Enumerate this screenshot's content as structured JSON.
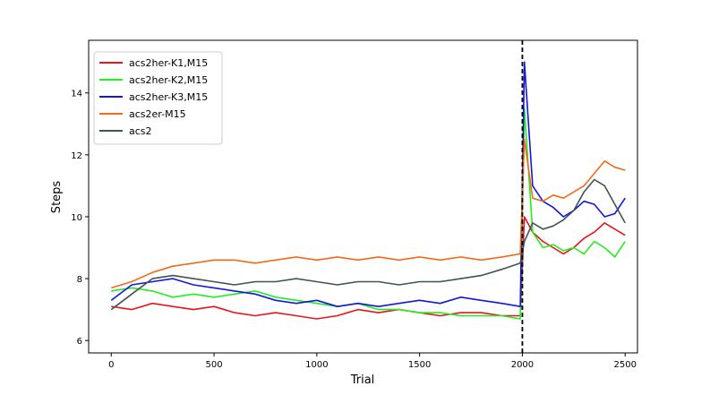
{
  "chart_data": {
    "type": "line",
    "xlabel": "Trial",
    "ylabel": "Steps",
    "xlim": [
      -110,
      2560
    ],
    "ylim": [
      5.6,
      15.7
    ],
    "xticks": [
      0,
      500,
      1000,
      1500,
      2000,
      2500
    ],
    "yticks": [
      6,
      8,
      10,
      12,
      14
    ],
    "xtick_labels": [
      "0",
      "500",
      "1000",
      "1500",
      "2000",
      "2500"
    ],
    "ytick_labels": [
      "6",
      "8",
      "10",
      "12",
      "14"
    ],
    "grid": false,
    "legend_placement": "top-left",
    "vline": {
      "x": 2000,
      "style": "dashed",
      "color": "#000000"
    },
    "series": [
      {
        "name": "acs2her-K1,M15",
        "color": "#e8141c",
        "x": [
          0,
          100,
          200,
          300,
          400,
          500,
          600,
          700,
          800,
          900,
          1000,
          1100,
          1200,
          1300,
          1400,
          1500,
          1600,
          1700,
          1800,
          1900,
          1990,
          2010,
          2050,
          2100,
          2150,
          2200,
          2250,
          2300,
          2350,
          2400,
          2450,
          2500
        ],
        "y": [
          7.1,
          7.0,
          7.2,
          7.1,
          7.0,
          7.1,
          6.9,
          6.8,
          6.9,
          6.8,
          6.7,
          6.8,
          7.0,
          6.9,
          7.0,
          6.9,
          6.8,
          6.9,
          6.9,
          6.8,
          6.8,
          10.0,
          9.5,
          9.2,
          9.0,
          8.8,
          9.0,
          9.3,
          9.5,
          9.8,
          9.6,
          9.4
        ]
      },
      {
        "name": "acs2her-K2,M15",
        "color": "#22ee22",
        "x": [
          0,
          100,
          200,
          300,
          400,
          500,
          600,
          700,
          800,
          900,
          1000,
          1100,
          1200,
          1300,
          1400,
          1500,
          1600,
          1700,
          1800,
          1900,
          1990,
          2010,
          2050,
          2100,
          2150,
          2200,
          2250,
          2300,
          2350,
          2400,
          2450,
          2500
        ],
        "y": [
          7.6,
          7.7,
          7.6,
          7.4,
          7.5,
          7.4,
          7.5,
          7.6,
          7.4,
          7.3,
          7.2,
          7.1,
          7.2,
          7.0,
          7.0,
          6.9,
          6.9,
          6.8,
          6.8,
          6.8,
          6.7,
          13.5,
          9.5,
          9.0,
          9.1,
          8.9,
          9.0,
          8.8,
          9.2,
          9.0,
          8.7,
          9.2
        ]
      },
      {
        "name": "acs2her-K3,M15",
        "color": "#1515e0",
        "x": [
          0,
          100,
          200,
          300,
          400,
          500,
          600,
          700,
          800,
          900,
          1000,
          1100,
          1200,
          1300,
          1400,
          1500,
          1600,
          1700,
          1800,
          1900,
          1990,
          2010,
          2050,
          2100,
          2150,
          2200,
          2250,
          2300,
          2350,
          2400,
          2450,
          2500
        ],
        "y": [
          7.3,
          7.8,
          7.9,
          8.0,
          7.8,
          7.7,
          7.6,
          7.5,
          7.3,
          7.2,
          7.3,
          7.1,
          7.2,
          7.1,
          7.2,
          7.3,
          7.2,
          7.4,
          7.3,
          7.2,
          7.1,
          15.0,
          11.0,
          10.5,
          10.3,
          10.0,
          10.2,
          10.5,
          10.4,
          10.0,
          10.1,
          10.6
        ]
      },
      {
        "name": "acs2er-M15",
        "color": "#f26a1b",
        "x": [
          0,
          100,
          200,
          300,
          400,
          500,
          600,
          700,
          800,
          900,
          1000,
          1100,
          1200,
          1300,
          1400,
          1500,
          1600,
          1700,
          1800,
          1900,
          1990,
          2010,
          2050,
          2100,
          2150,
          2200,
          2250,
          2300,
          2350,
          2400,
          2450,
          2500
        ],
        "y": [
          7.7,
          7.9,
          8.2,
          8.4,
          8.5,
          8.6,
          8.6,
          8.5,
          8.6,
          8.7,
          8.6,
          8.7,
          8.6,
          8.7,
          8.6,
          8.7,
          8.6,
          8.7,
          8.6,
          8.7,
          8.8,
          12.5,
          10.6,
          10.5,
          10.7,
          10.6,
          10.8,
          11.0,
          11.4,
          11.8,
          11.6,
          11.5
        ]
      },
      {
        "name": "acs2",
        "color": "#3e5455",
        "x": [
          0,
          100,
          200,
          300,
          400,
          500,
          600,
          700,
          800,
          900,
          1000,
          1100,
          1200,
          1300,
          1400,
          1500,
          1600,
          1700,
          1800,
          1900,
          1990,
          2010,
          2050,
          2100,
          2150,
          2200,
          2250,
          2300,
          2350,
          2400,
          2450,
          2500
        ],
        "y": [
          7.0,
          7.5,
          8.0,
          8.1,
          8.0,
          7.9,
          7.8,
          7.9,
          7.9,
          8.0,
          7.9,
          7.8,
          7.9,
          7.9,
          7.8,
          7.9,
          7.9,
          8.0,
          8.1,
          8.3,
          8.5,
          9.2,
          9.8,
          9.6,
          9.7,
          9.9,
          10.2,
          10.8,
          11.2,
          11.0,
          10.4,
          9.8
        ]
      }
    ]
  }
}
